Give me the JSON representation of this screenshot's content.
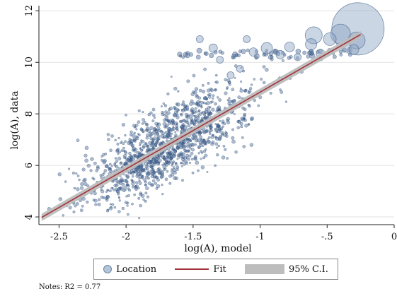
{
  "chart_data": {
    "type": "scatter",
    "xlabel": "log(A), model",
    "ylabel": "log(A), data",
    "xlim": [
      -2.65,
      0
    ],
    "ylim": [
      3.7,
      12.2
    ],
    "x_ticks": [
      -2.5,
      -2,
      -1.5,
      -1,
      -0.5,
      0
    ],
    "x_tick_labels": [
      "-2.5",
      "-2",
      "-1.5",
      "-1",
      "-.5",
      "0"
    ],
    "y_ticks": [
      4,
      6,
      8,
      10,
      12
    ],
    "y_tick_labels": [
      "4",
      "6",
      "8",
      "10",
      "12"
    ],
    "grid": true,
    "legend_position": "bottom",
    "legend": [
      {
        "key": "location",
        "label": "Location"
      },
      {
        "key": "fit",
        "label": "Fit"
      },
      {
        "key": "ci",
        "label": "95% C.I."
      }
    ],
    "fit": {
      "x": [
        -2.63,
        -0.25
      ],
      "y": [
        3.98,
        11.08
      ]
    },
    "ci_halfwidth": 0.1,
    "large_points": [
      {
        "x": -0.27,
        "y": 11.3,
        "r": 37
      },
      {
        "x": -0.4,
        "y": 11.1,
        "r": 14
      },
      {
        "x": -0.6,
        "y": 11.05,
        "r": 12
      },
      {
        "x": -0.28,
        "y": 10.85,
        "r": 12
      },
      {
        "x": -0.48,
        "y": 10.9,
        "r": 9
      },
      {
        "x": -0.62,
        "y": 10.7,
        "r": 8
      },
      {
        "x": -0.78,
        "y": 10.6,
        "r": 7
      },
      {
        "x": -0.95,
        "y": 10.55,
        "r": 8
      },
      {
        "x": -1.05,
        "y": 10.4,
        "r": 6
      },
      {
        "x": -1.35,
        "y": 10.55,
        "r": 6
      },
      {
        "x": -1.3,
        "y": 10.1,
        "r": 5
      },
      {
        "x": -1.15,
        "y": 9.75,
        "r": 5
      },
      {
        "x": -0.85,
        "y": 10.3,
        "r": 6
      },
      {
        "x": -0.72,
        "y": 10.2,
        "r": 5
      },
      {
        "x": -1.1,
        "y": 10.9,
        "r": 5
      },
      {
        "x": -0.55,
        "y": 10.35,
        "r": 6
      },
      {
        "x": -0.3,
        "y": 10.5,
        "r": 7
      },
      {
        "x": -1.22,
        "y": 9.5,
        "r": 5
      },
      {
        "x": -1.45,
        "y": 10.9,
        "r": 5
      }
    ],
    "scatter_seed": 7,
    "scatter_count": 1300,
    "colors": {
      "point_fill": "rgba(70,105,150,0.45)",
      "point_stroke": "rgba(40,70,110,0.55)",
      "bubble_fill": "rgba(140,165,195,0.45)",
      "bubble_stroke": "rgba(70,100,140,0.7)",
      "fit": "#a3343c",
      "ci": "#bdbdbd",
      "grid": "#e3e3e3"
    }
  },
  "notes": "Notes: R2 = 0.77"
}
